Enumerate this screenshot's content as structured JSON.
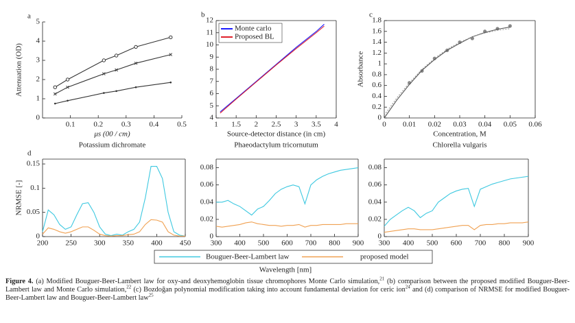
{
  "chart_data": [
    {
      "type": "line",
      "panel": "a",
      "xlabel": "μs (00 / cm)",
      "ylabel": "Attenuation (OD)",
      "subtitle": "Potassium dichromate",
      "box": false,
      "xlim": [
        0,
        0.5
      ],
      "xticks": [
        0.1,
        0.2,
        0.3,
        0.4,
        0.5
      ],
      "ylim": [
        0,
        5
      ],
      "yticks": [
        0,
        1,
        2,
        3,
        4,
        5
      ],
      "x": [
        0.045,
        0.09,
        0.22,
        0.265,
        0.335,
        0.46
      ],
      "series": [
        {
          "color": "#333333",
          "marker": "circle",
          "values": [
            1.6,
            2.0,
            3.0,
            3.25,
            3.7,
            4.2
          ]
        },
        {
          "color": "#333333",
          "marker": "x",
          "values": [
            1.25,
            1.6,
            2.3,
            2.5,
            2.85,
            3.3
          ]
        },
        {
          "color": "#333333",
          "marker": "dot",
          "values": [
            0.75,
            0.9,
            1.3,
            1.4,
            1.6,
            1.85
          ]
        }
      ]
    },
    {
      "type": "line",
      "panel": "b",
      "xlabel": "Source-detector distance (in cm)",
      "subtitle": "Phaeodactylum tricornutum",
      "box": true,
      "legend": "upper left",
      "xlim": [
        1,
        4
      ],
      "xticks": [
        1,
        1.5,
        2,
        2.5,
        3,
        3.5,
        4
      ],
      "ylim": [
        4,
        12
      ],
      "yticks": [
        4,
        5,
        6,
        7,
        8,
        9,
        10,
        11,
        12
      ],
      "x": [
        1.1,
        1.5,
        2,
        2.5,
        3,
        3.5,
        3.7
      ],
      "series": [
        {
          "name": "Monte carlo",
          "color": "#1a1aff",
          "values": [
            4.5,
            5.6,
            7.0,
            8.4,
            9.8,
            11.1,
            11.7
          ]
        },
        {
          "name": "Proposed BL",
          "color": "#e0202a",
          "values": [
            4.4,
            5.55,
            6.95,
            8.35,
            9.7,
            11.0,
            11.55
          ]
        }
      ]
    },
    {
      "type": "scatter",
      "panel": "c",
      "xlabel": "Concentration, M",
      "ylabel": "Absorbance",
      "subtitle": "Chlorella vulgaris",
      "box": true,
      "xlim": [
        0,
        0.06
      ],
      "xticks": [
        0,
        0.01,
        0.02,
        0.03,
        0.04,
        0.05,
        0.06
      ],
      "ylim": [
        0,
        1.8
      ],
      "yticks": [
        0,
        0.2,
        0.4,
        0.6,
        0.8,
        1,
        1.2,
        1.4,
        1.6,
        1.8
      ],
      "series": [
        {
          "color": "#888888",
          "marker": "filled",
          "x": [
            0.01,
            0.015,
            0.02,
            0.025,
            0.03,
            0.035,
            0.04,
            0.045,
            0.05
          ],
          "values": [
            0.65,
            0.87,
            1.1,
            1.25,
            1.4,
            1.47,
            1.6,
            1.65,
            1.7
          ]
        },
        {
          "color": "#555555",
          "x": [
            0,
            0.005,
            0.01,
            0.015,
            0.02,
            0.025,
            0.03,
            0.035,
            0.04,
            0.045,
            0.05
          ],
          "values": [
            0,
            0.33,
            0.62,
            0.88,
            1.08,
            1.25,
            1.38,
            1.5,
            1.58,
            1.64,
            1.68
          ]
        },
        {
          "color": "#999999",
          "dash": true,
          "x": [
            0,
            0.005,
            0.01,
            0.015,
            0.02,
            0.025,
            0.03,
            0.035,
            0.04,
            0.045,
            0.05
          ],
          "values": [
            0.05,
            0.37,
            0.65,
            0.9,
            1.1,
            1.27,
            1.4,
            1.5,
            1.57,
            1.62,
            1.65
          ]
        }
      ]
    },
    {
      "type": "line",
      "panel": "d",
      "ylabel": "NRMSE [-]",
      "box": true,
      "xlim": [
        200,
        450
      ],
      "xticks": [
        200,
        250,
        300,
        350,
        400,
        450
      ],
      "ylim": [
        0,
        0.16
      ],
      "yticks": [
        0,
        0.05,
        0.1,
        0.15
      ],
      "x": [
        200,
        210,
        220,
        230,
        240,
        250,
        260,
        270,
        280,
        290,
        300,
        310,
        320,
        330,
        340,
        350,
        360,
        370,
        380,
        390,
        400,
        410,
        420,
        430,
        440,
        450
      ],
      "series": [
        {
          "name": "Bouguer-Beer-Lambert law",
          "color": "#3cc8e0",
          "values": [
            0.01,
            0.055,
            0.045,
            0.025,
            0.015,
            0.02,
            0.045,
            0.068,
            0.07,
            0.05,
            0.02,
            0.005,
            0.002,
            0.005,
            0.003,
            0.01,
            0.015,
            0.03,
            0.08,
            0.145,
            0.145,
            0.12,
            0.05,
            0.01,
            0.003,
            0.001
          ]
        },
        {
          "name": "proposed model",
          "color": "#f0a050",
          "values": [
            0.005,
            0.018,
            0.015,
            0.01,
            0.007,
            0.01,
            0.015,
            0.02,
            0.02,
            0.013,
            0.005,
            0.002,
            0.001,
            0.002,
            0.002,
            0.004,
            0.005,
            0.01,
            0.025,
            0.035,
            0.034,
            0.03,
            0.01,
            0.003,
            0.001,
            0.001
          ]
        }
      ]
    },
    {
      "type": "line",
      "box": true,
      "xlim": [
        300,
        900
      ],
      "xticks": [
        300,
        400,
        500,
        600,
        700,
        800,
        900
      ],
      "ylim": [
        0,
        0.09
      ],
      "yticks": [
        0,
        0.02,
        0.04,
        0.06,
        0.08
      ],
      "x": [
        300,
        325,
        350,
        375,
        400,
        425,
        450,
        475,
        500,
        525,
        550,
        575,
        600,
        625,
        650,
        675,
        700,
        725,
        750,
        775,
        800,
        825,
        850,
        875,
        900
      ],
      "series": [
        {
          "color": "#3cc8e0",
          "values": [
            0.04,
            0.04,
            0.042,
            0.038,
            0.035,
            0.03,
            0.025,
            0.032,
            0.035,
            0.042,
            0.05,
            0.055,
            0.058,
            0.06,
            0.058,
            0.038,
            0.06,
            0.066,
            0.07,
            0.073,
            0.075,
            0.077,
            0.078,
            0.079,
            0.08
          ]
        },
        {
          "color": "#f0a050",
          "values": [
            0.012,
            0.011,
            0.012,
            0.013,
            0.014,
            0.016,
            0.017,
            0.015,
            0.014,
            0.013,
            0.013,
            0.012,
            0.013,
            0.013,
            0.014,
            0.011,
            0.013,
            0.013,
            0.014,
            0.014,
            0.014,
            0.014,
            0.015,
            0.015,
            0.015
          ]
        }
      ]
    },
    {
      "type": "line",
      "box": true,
      "xlim": [
        300,
        900
      ],
      "xticks": [
        300,
        400,
        500,
        600,
        700,
        800,
        900
      ],
      "ylim": [
        0,
        0.09
      ],
      "yticks": [
        0,
        0.02,
        0.04,
        0.06,
        0.08
      ],
      "x": [
        300,
        325,
        350,
        375,
        400,
        425,
        450,
        475,
        500,
        525,
        550,
        575,
        600,
        625,
        650,
        675,
        700,
        725,
        750,
        775,
        800,
        825,
        850,
        875,
        900
      ],
      "series": [
        {
          "color": "#3cc8e0",
          "values": [
            0.012,
            0.02,
            0.025,
            0.03,
            0.034,
            0.03,
            0.022,
            0.027,
            0.03,
            0.04,
            0.045,
            0.05,
            0.053,
            0.055,
            0.056,
            0.035,
            0.055,
            0.058,
            0.061,
            0.063,
            0.065,
            0.067,
            0.068,
            0.069,
            0.07
          ]
        },
        {
          "color": "#f0a050",
          "values": [
            0.005,
            0.006,
            0.007,
            0.008,
            0.009,
            0.009,
            0.008,
            0.008,
            0.008,
            0.009,
            0.01,
            0.011,
            0.012,
            0.013,
            0.013,
            0.008,
            0.013,
            0.014,
            0.014,
            0.015,
            0.015,
            0.016,
            0.016,
            0.016,
            0.017
          ]
        }
      ]
    }
  ],
  "shared_xlabel": "Wavelength [nm]",
  "caption": {
    "label": "Figure 4.",
    "parts": [
      {
        "text": " (a) Modified Bouguer-Beer-Lambert law for oxy-and deoxyhemoglobin tissue chromophores Monte Carlo simulation,",
        "ref": "21"
      },
      {
        "text": " (b) comparison between the proposed modified Bouguer-Beer-Lambert law and Monte Carlo simulation,",
        "ref": "22"
      },
      {
        "text": " (c) Bozdoğan polynomial modification taking into account fundamental deviation for ceric ion",
        "ref": "24"
      },
      {
        "text": " and (d) comparison of NRMSE for modified Bouguer-Beer-Lambert law and Bouguer-Beer-Lambert law",
        "ref": "25"
      }
    ]
  }
}
